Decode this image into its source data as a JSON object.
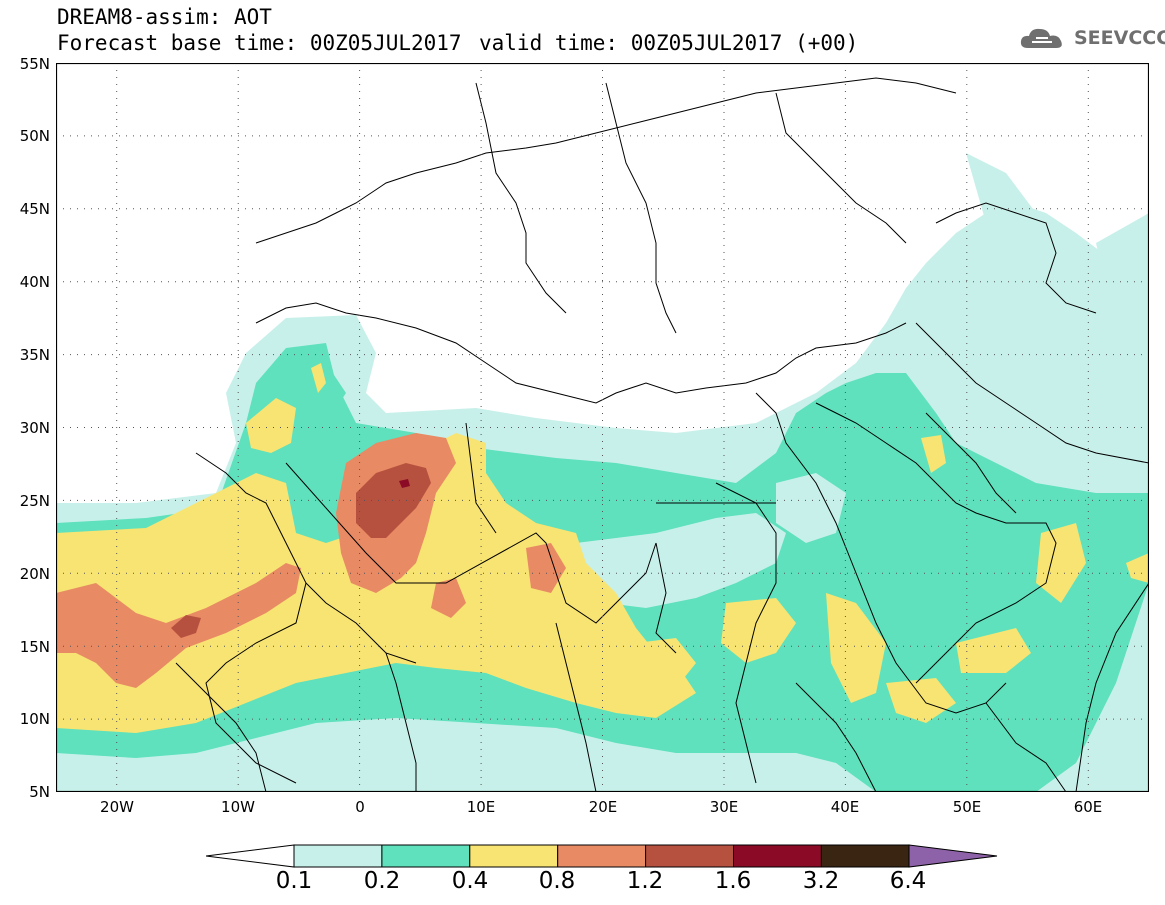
{
  "header": {
    "title": "DREAM8-assim: AOT",
    "base_time": "Forecast base time: 00Z05JUL2017",
    "valid_time": "valid time: 00Z05JUL2017 (+00)"
  },
  "logo": {
    "text": "SEEVCCC",
    "icon": "cloud-icon"
  },
  "map": {
    "projection": "lat-lon",
    "lon_range": [
      -25,
      65
    ],
    "lat_range": [
      5,
      55
    ],
    "gridlines": "dotted",
    "lat_labels": [
      "55N",
      "50N",
      "45N",
      "40N",
      "35N",
      "30N",
      "25N",
      "20N",
      "15N",
      "10N",
      "5N"
    ],
    "lon_labels": [
      "20W",
      "10W",
      "0",
      "10E",
      "20E",
      "30E",
      "40E",
      "50E",
      "60E"
    ]
  },
  "colorbar": {
    "labels": [
      "0.1",
      "0.2",
      "0.4",
      "0.8",
      "1.2",
      "1.6",
      "3.2",
      "6.4"
    ],
    "colors": [
      "#c8f0ea",
      "#5ee1bc",
      "#f8e472",
      "#e88a64",
      "#b7513f",
      "#8b0a26",
      "#3a2412",
      "#8d62a8"
    ],
    "extend": "both"
  }
}
